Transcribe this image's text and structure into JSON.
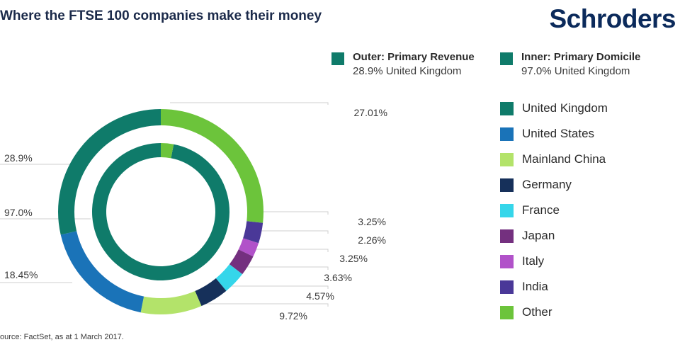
{
  "header": {
    "title": "Where the FTSE 100 companies make their money",
    "logo_text": "Schroders"
  },
  "rings_legend": {
    "outer_title": "Outer: Primary Revenue",
    "outer_value": "28.9% United Kingdom",
    "inner_title": "Inner: Primary Domicile",
    "inner_value": "97.0% United Kingdom"
  },
  "source": "ource: FactSet, as at 1 March 2017.",
  "chart_data": {
    "type": "pie",
    "subtype": "nested-donut",
    "categories": [
      "United Kingdom",
      "United States",
      "Mainland China",
      "Germany",
      "France",
      "Japan",
      "Italy",
      "India",
      "Other"
    ],
    "colors": [
      "#0f7b6a",
      "#1a73b8",
      "#b3e36a",
      "#16305a",
      "#35d6ea",
      "#74307f",
      "#b152c9",
      "#4a3898",
      "#6cc43b"
    ],
    "series": [
      {
        "ring": "outer",
        "slices": [
          {
            "category": "Other",
            "value": 27.01,
            "label": "27.01%"
          },
          {
            "category": "India",
            "value": 3.25,
            "label": "3.25%"
          },
          {
            "category": "Italy",
            "value": 2.26,
            "label": "2.26%"
          },
          {
            "category": "Japan",
            "value": 3.25,
            "label": "3.25%"
          },
          {
            "category": "France",
            "value": 3.63,
            "label": "3.63%"
          },
          {
            "category": "Germany",
            "value": 4.57,
            "label": "4.57%"
          },
          {
            "category": "Mainland China",
            "value": 9.72,
            "label": "9.72%"
          },
          {
            "category": "United States",
            "value": 18.45,
            "label": "18.45%"
          },
          {
            "category": "United Kingdom",
            "value": 28.9,
            "label": "28.9%"
          }
        ]
      },
      {
        "ring": "inner",
        "slices": [
          {
            "category": "United Kingdom",
            "value": 97.0,
            "label": "97.0%"
          },
          {
            "category": "Other",
            "value": 3.0,
            "label": ""
          }
        ]
      }
    ],
    "legend": {
      "position": "right",
      "entries": [
        "United Kingdom",
        "United States",
        "Mainland China",
        "Germany",
        "France",
        "Japan",
        "Italy",
        "India",
        "Other"
      ]
    }
  }
}
